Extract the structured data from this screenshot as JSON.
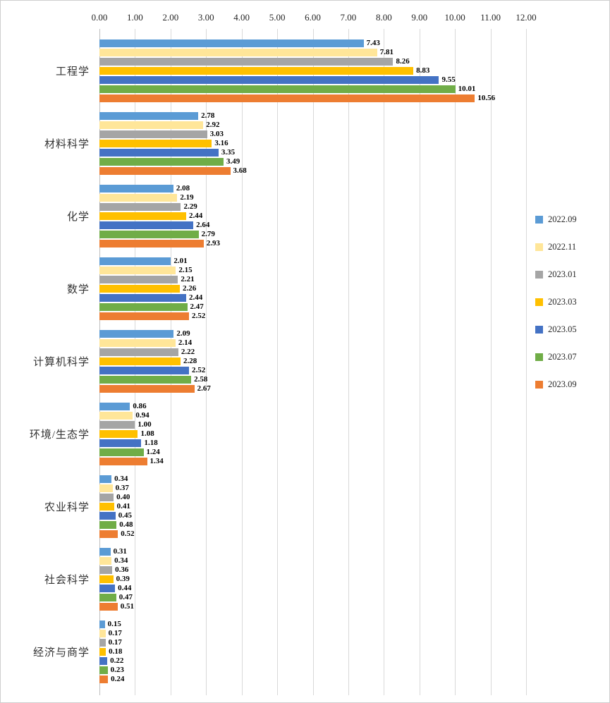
{
  "chart_data": {
    "type": "bar",
    "orientation": "horizontal",
    "title": "",
    "xlabel": "",
    "ylabel": "",
    "xlim": [
      0,
      12
    ],
    "grid": "vertical",
    "legend_position": "right",
    "value_labels": "end-of-bar, two decimals, bold",
    "x_ticks": [
      "0.00",
      "1.00",
      "2.00",
      "3.00",
      "4.00",
      "5.00",
      "6.00",
      "7.00",
      "8.00",
      "9.00",
      "10.00",
      "11.00",
      "12.00"
    ],
    "categories": [
      "工程学",
      "材料科学",
      "化学",
      "数学",
      "计算机科学",
      "环境/生态学",
      "农业科学",
      "社会科学",
      "经济与商学"
    ],
    "series": [
      {
        "name": "2022.09",
        "color": "#5B9BD5",
        "values": [
          7.43,
          2.78,
          2.08,
          2.01,
          2.09,
          0.86,
          0.34,
          0.31,
          0.15
        ]
      },
      {
        "name": "2022.11",
        "color": "#FFE699",
        "values": [
          7.81,
          2.92,
          2.19,
          2.15,
          2.14,
          0.94,
          0.37,
          0.34,
          0.17
        ]
      },
      {
        "name": "2023.01",
        "color": "#A5A5A5",
        "values": [
          8.26,
          3.03,
          2.29,
          2.21,
          2.22,
          1.0,
          0.4,
          0.36,
          0.17
        ]
      },
      {
        "name": "2023.03",
        "color": "#FFC000",
        "values": [
          8.83,
          3.16,
          2.44,
          2.26,
          2.28,
          1.08,
          0.41,
          0.39,
          0.18
        ]
      },
      {
        "name": "2023.05",
        "color": "#4472C4",
        "values": [
          9.55,
          3.35,
          2.64,
          2.44,
          2.52,
          1.18,
          0.45,
          0.44,
          0.22
        ]
      },
      {
        "name": "2023.07",
        "color": "#70AD47",
        "values": [
          10.01,
          3.49,
          2.79,
          2.47,
          2.58,
          1.24,
          0.48,
          0.47,
          0.23
        ]
      },
      {
        "name": "2023.09",
        "color": "#ED7D31",
        "values": [
          10.56,
          3.68,
          2.93,
          2.52,
          2.67,
          1.34,
          0.52,
          0.51,
          0.24
        ]
      }
    ],
    "colors": {
      "gridline": "#d9d9d9",
      "axis_line": "#bfbfbf",
      "tick_text": "#262626",
      "category_text": "#333333",
      "value_text": "#000000",
      "background": "#ffffff",
      "border": "#cfcfcf"
    }
  }
}
